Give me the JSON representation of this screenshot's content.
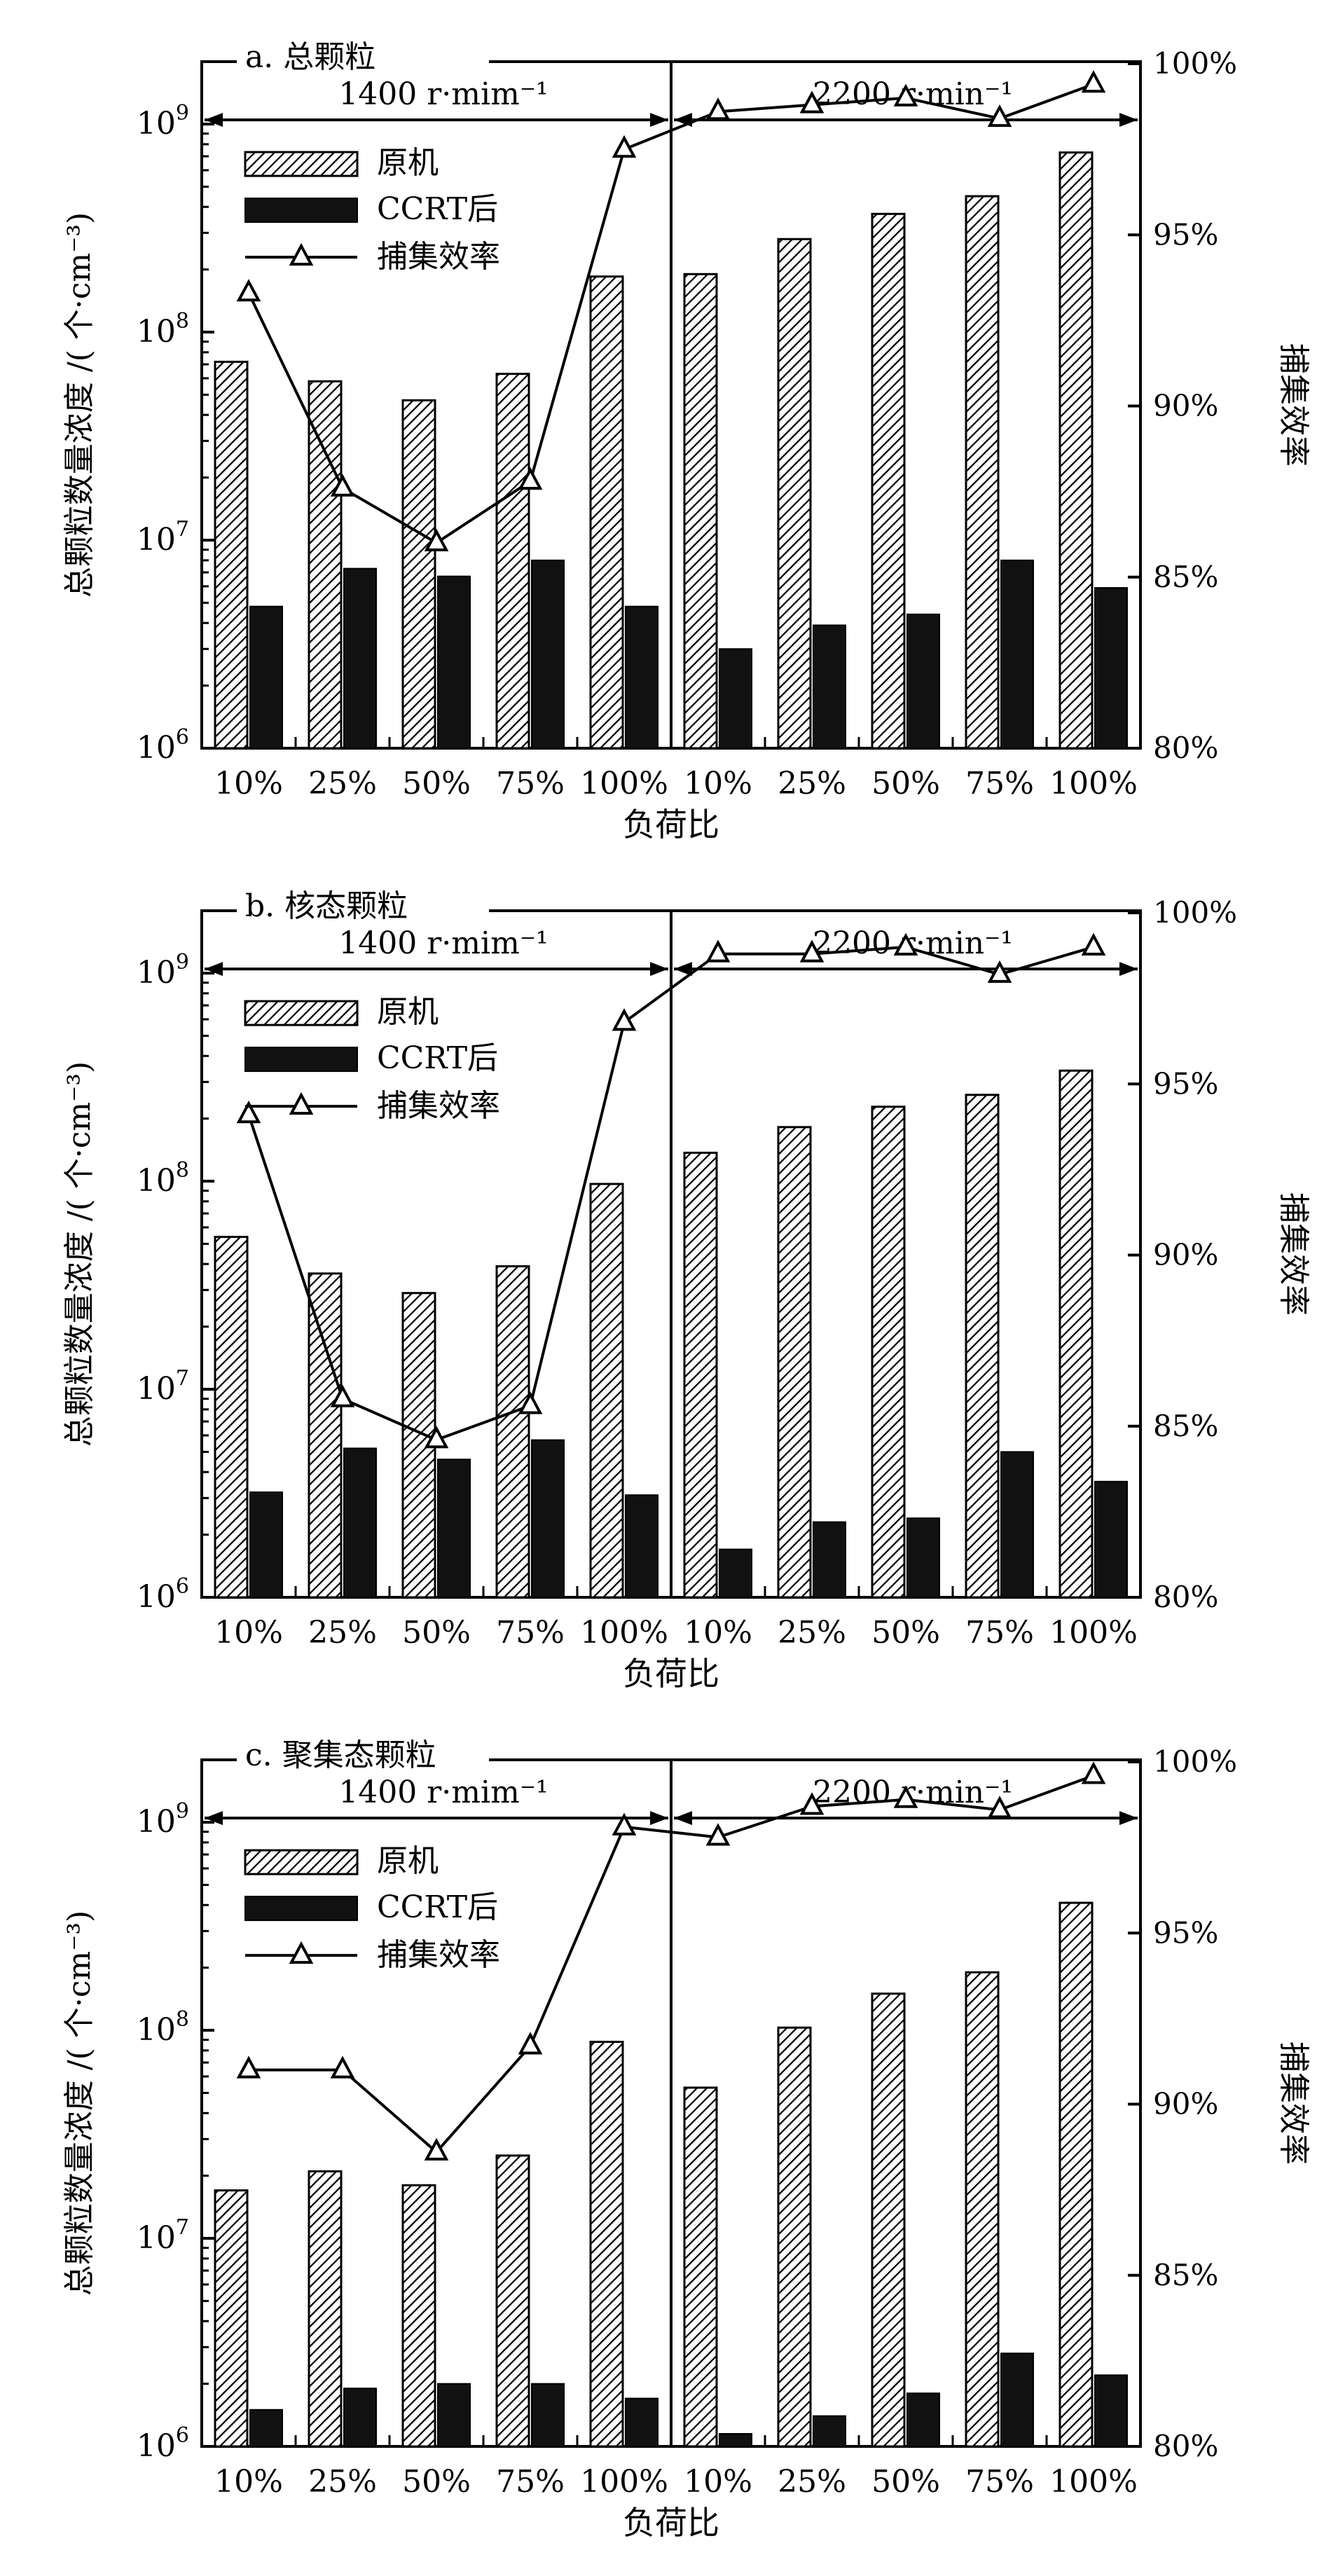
{
  "chart_data": [
    {
      "type": "bar",
      "title": "a. 总颗粒",
      "xlabel": "负荷比",
      "ylabel": "总颗粒数量浓度 /( 个·cm⁻³)",
      "y2label": "捕集效率",
      "categories": [
        "10%",
        "25%",
        "50%",
        "75%",
        "100%",
        "10%",
        "25%",
        "50%",
        "75%",
        "100%"
      ],
      "speed_labels": [
        "1400 r·mim⁻¹",
        "2200 r·min⁻¹"
      ],
      "legend": [
        "原机",
        "CCRT后",
        "捕集效率"
      ],
      "yticks": [
        {
          "base": "10",
          "exp": "6"
        },
        {
          "base": "10",
          "exp": "7"
        },
        {
          "base": "10",
          "exp": "8"
        },
        {
          "base": "10",
          "exp": "9"
        }
      ],
      "y2ticks": [
        "80%",
        "85%",
        "90%",
        "95%",
        "100%"
      ],
      "ylim_log10": [
        6,
        9.3
      ],
      "y2lim": [
        80,
        100
      ],
      "series": [
        {
          "name": "原机",
          "values": [
            72000000,
            58000000,
            47000000,
            63000000,
            185000000,
            190000000,
            280000000,
            370000000,
            450000000,
            730000000
          ]
        },
        {
          "name": "CCRT后",
          "values": [
            4800000,
            7300000,
            6700000,
            8000000,
            4800000,
            3000000,
            3900000,
            4400000,
            8000000,
            5900000
          ]
        },
        {
          "name": "捕集效率",
          "axis": "right",
          "values": [
            93.3,
            87.6,
            86.0,
            87.8,
            97.5,
            98.6,
            98.8,
            99.0,
            98.4,
            99.4
          ]
        }
      ]
    },
    {
      "type": "bar",
      "title": "b. 核态颗粒",
      "xlabel": "负荷比",
      "ylabel": "总颗粒数量浓度 /( 个·cm⁻³)",
      "y2label": "捕集效率",
      "categories": [
        "10%",
        "25%",
        "50%",
        "75%",
        "100%",
        "10%",
        "25%",
        "50%",
        "75%",
        "100%"
      ],
      "speed_labels": [
        "1400 r·mim⁻¹",
        "2200 r·min⁻¹"
      ],
      "legend": [
        "原机",
        "CCRT后",
        "捕集效率"
      ],
      "yticks": [
        {
          "base": "10",
          "exp": "6"
        },
        {
          "base": "10",
          "exp": "7"
        },
        {
          "base": "10",
          "exp": "8"
        },
        {
          "base": "10",
          "exp": "9"
        }
      ],
      "y2ticks": [
        "80%",
        "85%",
        "90%",
        "95%",
        "100%"
      ],
      "ylim_log10": [
        6,
        9.3
      ],
      "y2lim": [
        80,
        100
      ],
      "series": [
        {
          "name": "原机",
          "values": [
            54000000,
            36000000,
            29000000,
            39000000,
            97000000,
            137000000,
            182000000,
            228000000,
            260000000,
            340000000
          ]
        },
        {
          "name": "CCRT后",
          "values": [
            3200000,
            5200000,
            4600000,
            5700000,
            3100000,
            1700000,
            2300000,
            2400000,
            5000000,
            3600000
          ]
        },
        {
          "name": "捕集效率",
          "axis": "right",
          "values": [
            94.1,
            85.8,
            84.6,
            85.6,
            96.8,
            98.8,
            98.8,
            99.0,
            98.2,
            99.0
          ]
        }
      ]
    },
    {
      "type": "bar",
      "title": "c. 聚集态颗粒",
      "xlabel": "负荷比",
      "ylabel": "总颗粒数量浓度 /( 个·cm⁻³)",
      "y2label": "捕集效率",
      "categories": [
        "10%",
        "25%",
        "50%",
        "75%",
        "100%",
        "10%",
        "25%",
        "50%",
        "75%",
        "100%"
      ],
      "speed_labels": [
        "1400 r·mim⁻¹",
        "2200 r·min⁻¹"
      ],
      "legend": [
        "原机",
        "CCRT后",
        "捕集效率"
      ],
      "yticks": [
        {
          "base": "10",
          "exp": "6"
        },
        {
          "base": "10",
          "exp": "7"
        },
        {
          "base": "10",
          "exp": "8"
        },
        {
          "base": "10",
          "exp": "9"
        }
      ],
      "y2ticks": [
        "80%",
        "85%",
        "90%",
        "95%",
        "100%"
      ],
      "ylim_log10": [
        6,
        9.3
      ],
      "y2lim": [
        80,
        100
      ],
      "series": [
        {
          "name": "原机",
          "values": [
            17000000,
            21000000,
            18000000,
            25000000,
            88000000,
            53000000,
            103000000,
            150000000,
            190000000,
            410000000
          ]
        },
        {
          "name": "CCRT后",
          "values": [
            1500000,
            1900000,
            2000000,
            2000000,
            1700000,
            1150000,
            1400000,
            1800000,
            2800000,
            2200000
          ]
        },
        {
          "name": "捕集效率",
          "axis": "right",
          "values": [
            91.0,
            91.0,
            88.6,
            91.7,
            98.1,
            97.8,
            98.7,
            98.9,
            98.6,
            99.6
          ]
        }
      ]
    }
  ]
}
